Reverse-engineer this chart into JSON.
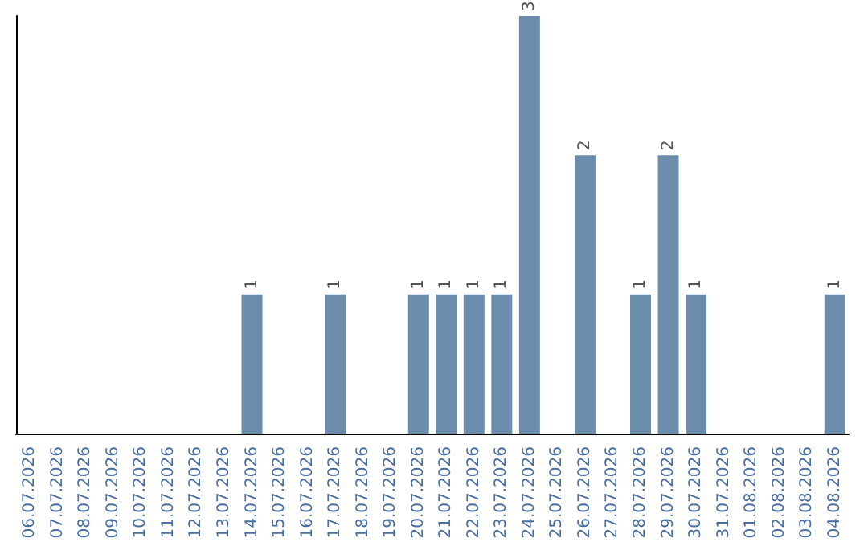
{
  "chart_data": {
    "type": "bar",
    "categories": [
      "06.07.2026",
      "07.07.2026",
      "08.07.2026",
      "09.07.2026",
      "10.07.2026",
      "11.07.2026",
      "12.07.2026",
      "13.07.2026",
      "14.07.2026",
      "15.07.2026",
      "16.07.2026",
      "17.07.2026",
      "18.07.2026",
      "19.07.2026",
      "20.07.2026",
      "21.07.2026",
      "22.07.2026",
      "23.07.2026",
      "24.07.2026",
      "25.07.2026",
      "26.07.2026",
      "27.07.2026",
      "28.07.2026",
      "29.07.2026",
      "30.07.2026",
      "31.07.2026",
      "01.08.2026",
      "02.08.2026",
      "03.08.2026",
      "04.08.2026"
    ],
    "values": [
      0,
      0,
      0,
      0,
      0,
      0,
      0,
      0,
      1,
      0,
      0,
      1,
      0,
      0,
      1,
      1,
      1,
      1,
      3,
      0,
      2,
      0,
      1,
      2,
      1,
      0,
      0,
      0,
      0,
      1
    ],
    "value_labels": [
      null,
      null,
      null,
      null,
      null,
      null,
      null,
      null,
      "1",
      null,
      null,
      "1",
      null,
      null,
      "1",
      "1",
      "1",
      "1",
      "3",
      null,
      "2",
      null,
      "1",
      "2",
      "1",
      null,
      null,
      null,
      null,
      "1"
    ],
    "color": "#6b8cab",
    "grid": false,
    "tick_labels": "x"
  }
}
